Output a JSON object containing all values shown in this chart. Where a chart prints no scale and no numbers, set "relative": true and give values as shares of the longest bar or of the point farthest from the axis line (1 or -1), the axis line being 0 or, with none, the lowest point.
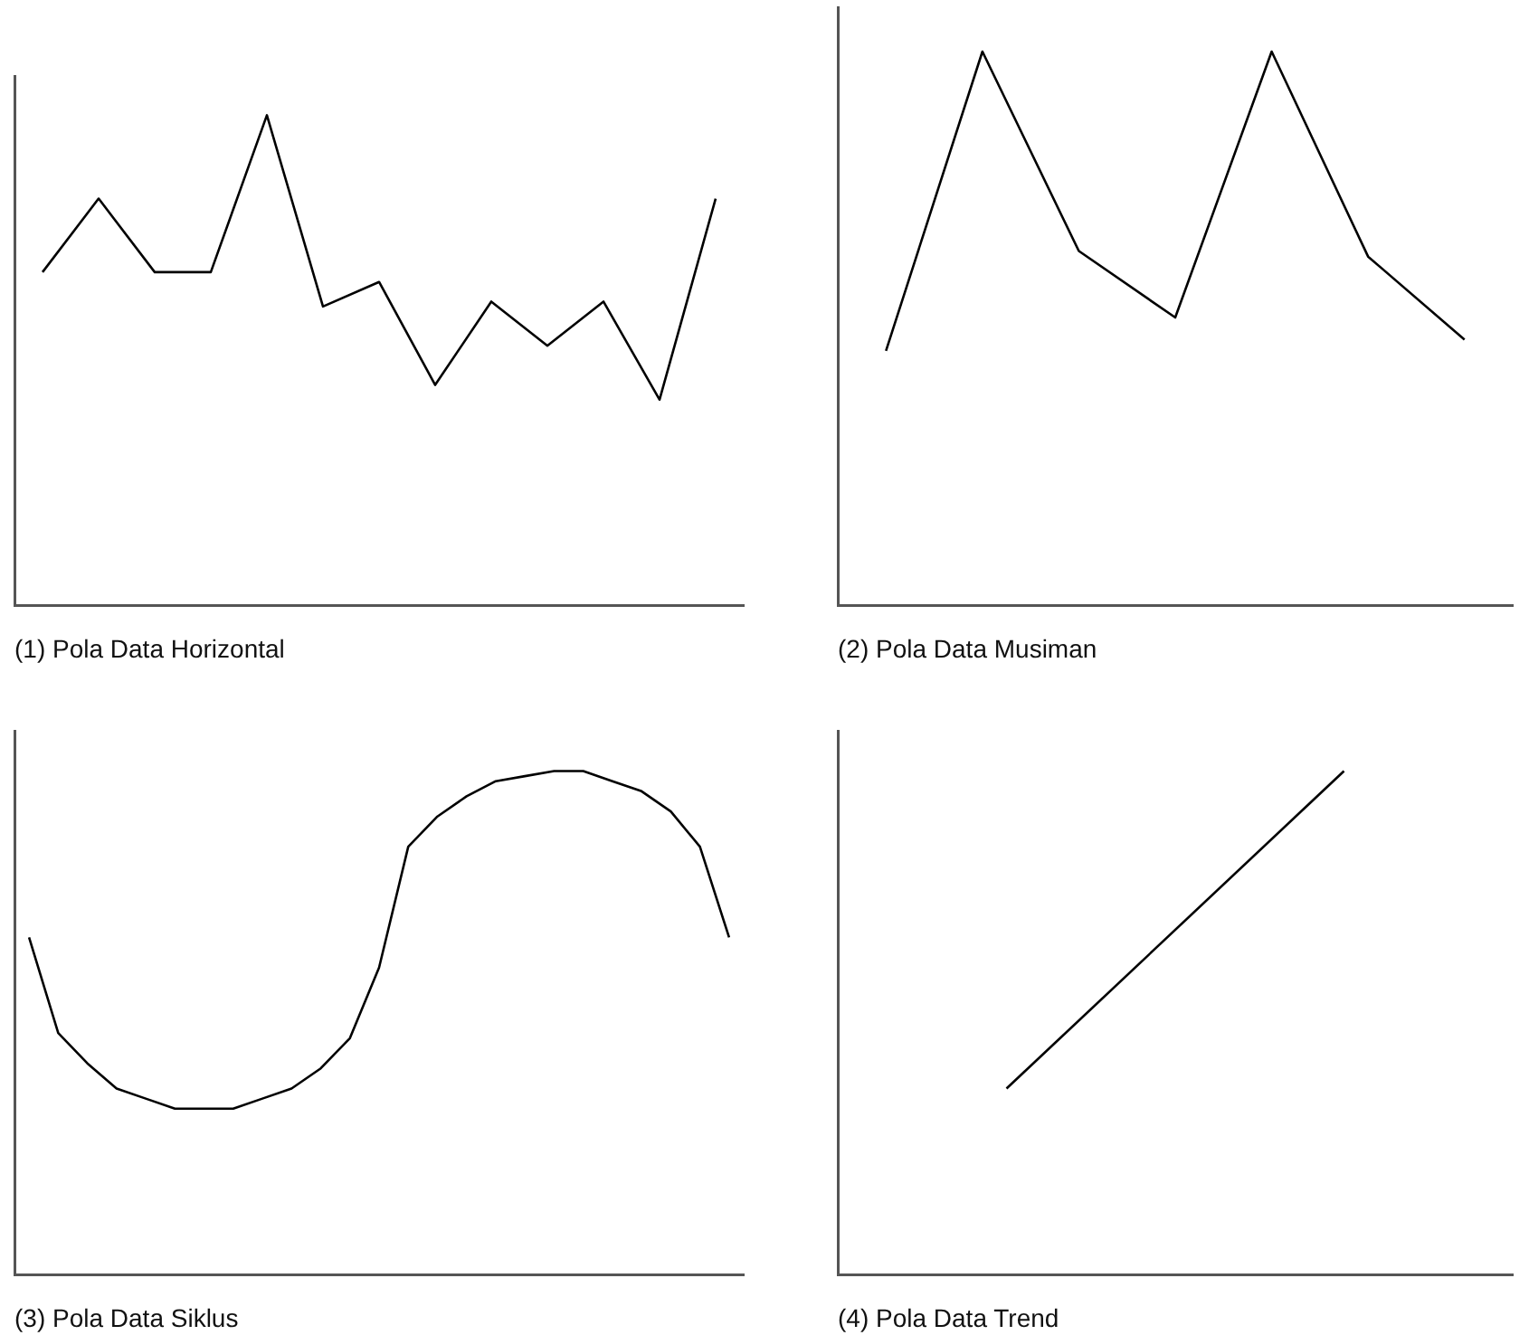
{
  "chart_data": [
    {
      "type": "line",
      "xlabel": "(1) Pola Data Horizontal",
      "relative": true,
      "grid": false,
      "legend": false,
      "marker": "none",
      "categories": [
        null,
        null,
        null,
        null,
        null,
        null,
        null,
        null,
        null,
        null,
        null,
        null,
        null
      ],
      "series": [
        {
          "color": "#000000",
          "values": [
            0.68,
            0.83,
            0.68,
            0.68,
            1,
            0.61,
            0.66,
            0.45,
            0.62,
            0.53,
            0.62,
            0.42,
            0.83
          ]
        }
      ]
    },
    {
      "type": "line",
      "xlabel": "(2) Pola Data Musiman",
      "relative": true,
      "grid": false,
      "legend": false,
      "marker": "none",
      "categories": [
        null,
        null,
        null,
        null,
        null,
        null,
        null
      ],
      "series": [
        {
          "color": "#000000",
          "values": [
            0.46,
            1,
            0.64,
            0.52,
            1,
            0.63,
            0.48
          ]
        }
      ]
    },
    {
      "type": "line",
      "xlabel": "(3) Pola Data Siklus",
      "relative": true,
      "grid": false,
      "legend": false,
      "marker": "none",
      "categories": [
        null,
        null,
        null,
        null,
        null,
        null,
        null,
        null,
        null,
        null,
        null,
        null,
        null,
        null,
        null,
        null,
        null,
        null,
        null,
        null,
        null,
        null,
        null,
        null,
        null
      ],
      "series": [
        {
          "color": "#000000",
          "values": [
            0.67,
            0.48,
            0.42,
            0.37,
            0.35,
            0.33,
            0.33,
            0.33,
            0.35,
            0.37,
            0.41,
            0.47,
            0.61,
            0.85,
            0.91,
            0.95,
            0.98,
            0.99,
            1,
            1,
            0.98,
            0.96,
            0.92,
            0.85,
            0.67
          ]
        }
      ]
    },
    {
      "type": "line",
      "xlabel": "(4) Pola Data Trend",
      "relative": true,
      "grid": false,
      "legend": false,
      "marker": "none",
      "categories": [
        null,
        null
      ],
      "series": [
        {
          "color": "#000000",
          "values": [
            0.37,
            1
          ]
        }
      ]
    }
  ]
}
